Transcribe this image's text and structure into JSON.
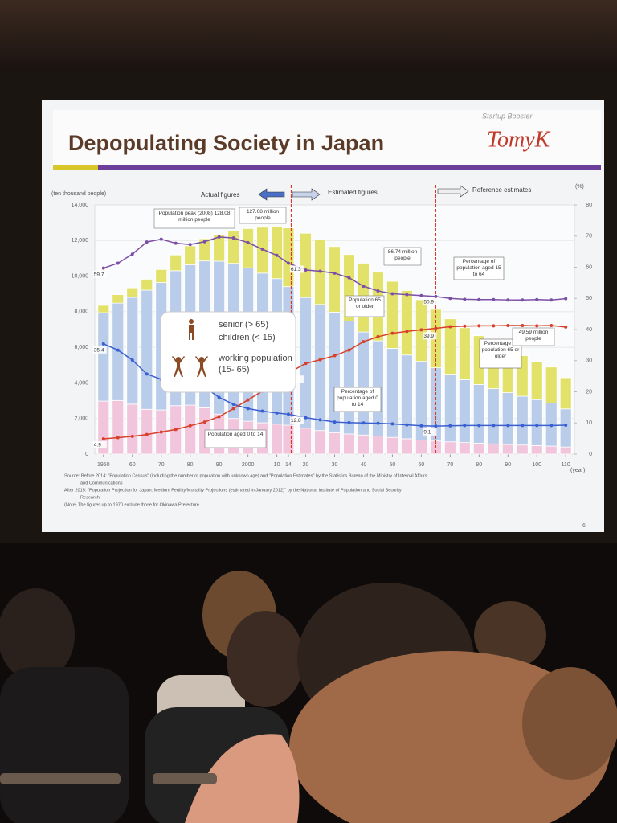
{
  "slide": {
    "title": "Depopulating Society in Japan",
    "brand_small": "Startup Booster",
    "brand": "TomyK",
    "page_number": "6",
    "phase_labels": [
      "Actual figures",
      "Estimated figures",
      "Reference estimates"
    ],
    "notes": [
      "Source: Before 2014: \"Population Census\" (including the number of population with unknown age) and \"Population Estimates\" by the Statistics Bureau of the Ministry of Internal Affairs",
      "and Communications",
      "After 2015: \"Population Projection for Japan: Medium Fertility/Mortality Projections (estimated in January 2012)\" by the National Institute of Population and Social Security",
      "Research",
      "(Note) The figures up to 1970 exclude those for Okinawa Prefecture"
    ]
  },
  "chart_data": {
    "type": "combo",
    "y_label": "(ten thousand people)",
    "y2_label": "(%)",
    "x_label": "(year)",
    "x": [
      1950,
      1955,
      1960,
      1965,
      1970,
      1975,
      1980,
      1985,
      1990,
      1995,
      2000,
      2005,
      2010,
      2014,
      2020,
      2025,
      2030,
      2035,
      2040,
      2045,
      2050,
      2055,
      2060,
      2065,
      2070,
      2075,
      2080,
      2085,
      2090,
      2095,
      2100,
      2105,
      2110
    ],
    "xlim": [
      1947,
      2113
    ],
    "xticks": [
      1950,
      {
        "value": 1960,
        "label": "60"
      },
      {
        "value": 1970,
        "label": "70"
      },
      {
        "value": 1980,
        "label": "80"
      },
      {
        "value": 1990,
        "label": "90"
      },
      2000,
      {
        "value": 2010,
        "label": "10"
      },
      {
        "value": 2014,
        "label": "14"
      },
      {
        "value": 2020,
        "label": "20"
      },
      {
        "value": 2030,
        "label": "30"
      },
      {
        "value": 2040,
        "label": "40"
      },
      {
        "value": 2050,
        "label": "50"
      },
      {
        "value": 2060,
        "label": "60"
      },
      {
        "value": 2070,
        "label": "70"
      },
      {
        "value": 2080,
        "label": "80"
      },
      {
        "value": 2090,
        "label": "90"
      },
      {
        "value": 2100,
        "label": "100"
      },
      {
        "value": 2110,
        "label": "110"
      }
    ],
    "ylim": [
      0,
      14000
    ],
    "yticks": [
      0,
      {
        "value": 2000,
        "label": "2,000"
      },
      {
        "value": 4000,
        "label": "4,000"
      },
      {
        "value": 6000,
        "label": "6,000"
      },
      {
        "value": 8000,
        "label": "8,000"
      },
      {
        "value": 10000,
        "label": "10,000"
      },
      {
        "value": 12000,
        "label": "12,000"
      },
      {
        "value": 14000,
        "label": "14,000"
      }
    ],
    "y2lim": [
      0,
      80
    ],
    "y2ticks": [
      0,
      10,
      20,
      30,
      40,
      50,
      60,
      70,
      80
    ],
    "grid": true,
    "reference_lines": [
      2015,
      2065
    ],
    "series": [
      {
        "name": "children (< 15)",
        "color": "#f1c6dd",
        "values": [
          2979,
          3012,
          2807,
          2517,
          2482,
          2722,
          2751,
          2603,
          2249,
          2001,
          1847,
          1759,
          1684,
          1623,
          1457,
          1324,
          1204,
          1129,
          1073,
          1012,
          939,
          861,
          791,
          735,
          690,
          650,
          610,
          575,
          540,
          510,
          480,
          450,
          400
        ]
      },
      {
        "name": "working population (15- 65)",
        "color": "#b9cce9",
        "values": [
          4966,
          5473,
          6000,
          6692,
          7157,
          7581,
          7883,
          8251,
          8590,
          8716,
          8622,
          8409,
          8173,
          7785,
          7341,
          7085,
          6773,
          6343,
          5787,
          5353,
          5001,
          4706,
          4418,
          4113,
          3800,
          3530,
          3300,
          3100,
          2910,
          2740,
          2580,
          2420,
          2140
        ]
      },
      {
        "name": "senior (> 65)",
        "color": "#e2e26a",
        "values": [
          411,
          475,
          535,
          618,
          733,
          887,
          1065,
          1247,
          1489,
          1826,
          2204,
          2576,
          2948,
          3300,
          3612,
          3657,
          3685,
          3741,
          3868,
          3856,
          3768,
          3626,
          3464,
          3287,
          3110,
          2920,
          2740,
          2575,
          2430,
          2280,
          2140,
          2020,
          1750
        ]
      },
      {
        "name": "Percentage of population aged 15 to 64",
        "color": "#7b4fa6",
        "axis": "y2",
        "values": [
          59.7,
          61.3,
          64.2,
          68.1,
          69.0,
          67.7,
          67.3,
          68.2,
          69.7,
          69.4,
          67.9,
          65.8,
          63.8,
          61.3,
          59.1,
          58.7,
          58.1,
          56.6,
          53.9,
          52.4,
          51.5,
          51.2,
          50.9,
          50.6,
          50.0,
          49.7,
          49.6,
          49.6,
          49.5,
          49.5,
          49.6,
          49.5,
          49.9
        ]
      },
      {
        "name": "Percentage of population aged 0 to 14",
        "color": "#3a5fd0",
        "axis": "y2",
        "values": [
          35.4,
          33.4,
          30.2,
          25.7,
          24.0,
          24.3,
          23.5,
          21.5,
          18.2,
          16.0,
          14.6,
          13.8,
          13.2,
          12.8,
          11.7,
          11.0,
          10.3,
          10.1,
          10.0,
          9.9,
          9.7,
          9.4,
          9.1,
          9.0,
          9.1,
          9.2,
          9.2,
          9.2,
          9.2,
          9.2,
          9.2,
          9.2,
          9.3
        ]
      },
      {
        "name": "Percentage of population 65 or older",
        "color": "#d8402a",
        "axis": "y2",
        "values": [
          4.9,
          5.3,
          5.7,
          6.3,
          7.1,
          7.9,
          9.1,
          10.3,
          12.0,
          14.6,
          17.4,
          20.2,
          23.0,
          26.0,
          29.1,
          30.3,
          31.6,
          33.4,
          36.1,
          37.7,
          38.8,
          39.4,
          39.9,
          40.4,
          40.9,
          41.1,
          41.2,
          41.2,
          41.3,
          41.3,
          41.2,
          41.3,
          40.8
        ]
      }
    ],
    "annotations": [
      "Population peak (2008) 128.08 million people",
      "127.08 million people",
      "86.74 million people",
      "49.59 million people",
      "Population 65 or older",
      "Population aged 0 to 14"
    ]
  }
}
